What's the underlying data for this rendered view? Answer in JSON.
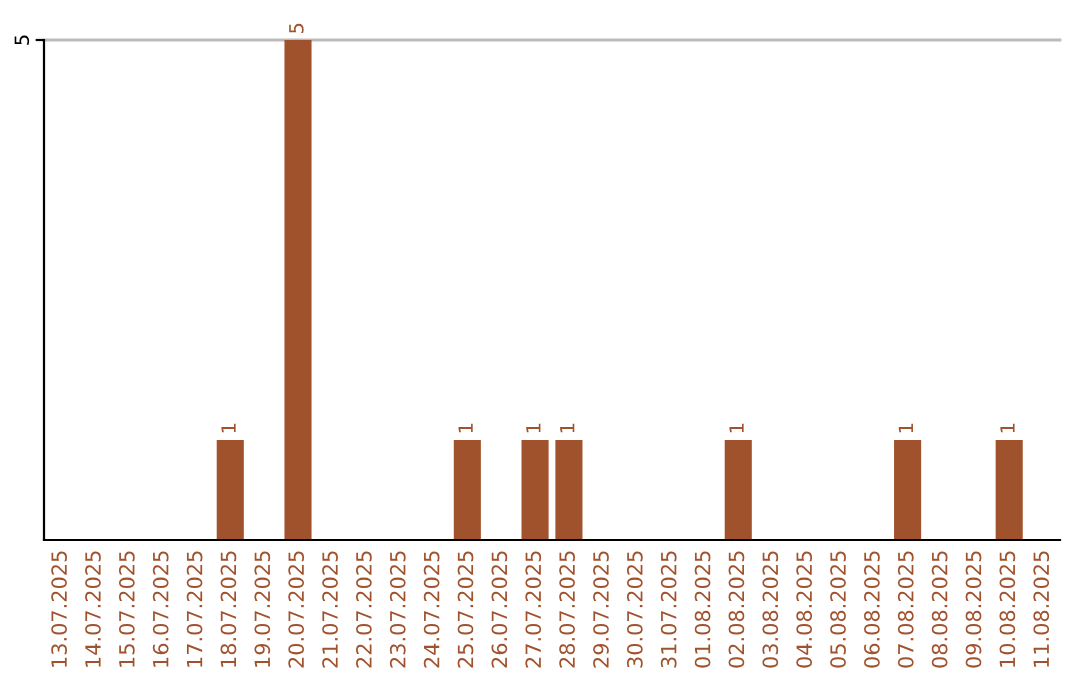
{
  "chart_data": {
    "type": "bar",
    "categories": [
      "13.07.2025",
      "14.07.2025",
      "15.07.2025",
      "16.07.2025",
      "17.07.2025",
      "18.07.2025",
      "19.07.2025",
      "20.07.2025",
      "21.07.2025",
      "22.07.2025",
      "23.07.2025",
      "24.07.2025",
      "25.07.2025",
      "26.07.2025",
      "27.07.2025",
      "28.07.2025",
      "29.07.2025",
      "30.07.2025",
      "31.07.2025",
      "01.08.2025",
      "02.08.2025",
      "03.08.2025",
      "04.08.2025",
      "05.08.2025",
      "06.08.2025",
      "07.08.2025",
      "08.08.2025",
      "09.08.2025",
      "10.08.2025",
      "11.08.2025"
    ],
    "values": [
      0,
      0,
      0,
      0,
      0,
      1,
      0,
      5,
      0,
      0,
      0,
      0,
      1,
      0,
      1,
      1,
      0,
      0,
      0,
      0,
      1,
      0,
      0,
      0,
      0,
      1,
      0,
      0,
      1,
      0
    ],
    "value_labels": [
      null,
      null,
      null,
      null,
      null,
      "1",
      null,
      "5",
      null,
      null,
      null,
      null,
      "1",
      null,
      "1",
      "1",
      null,
      null,
      null,
      null,
      "1",
      null,
      null,
      null,
      null,
      "1",
      null,
      null,
      "1",
      null
    ],
    "color": "#a0522d",
    "ylim": [
      0,
      5
    ],
    "yticks": [
      5
    ],
    "ref_lines": [
      {
        "axis": "y",
        "value": 5,
        "color": "#bbbbbb"
      }
    ]
  }
}
